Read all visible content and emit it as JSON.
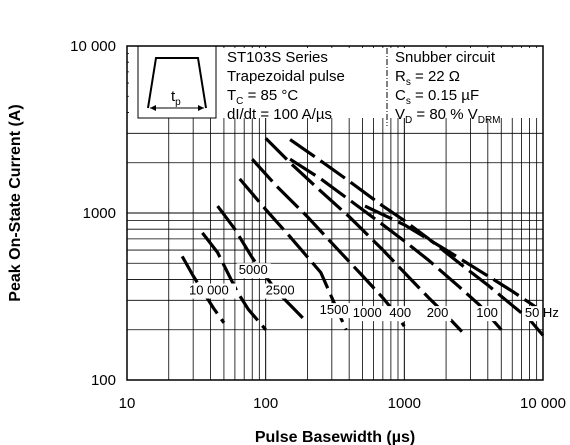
{
  "chart_data": {
    "type": "line",
    "title": "",
    "xlabel": "Pulse Basewidth (µs)",
    "ylabel": "Peak On-State Current (A)",
    "xscale": "log",
    "yscale": "log",
    "xlim": [
      10,
      10000
    ],
    "ylim": [
      100,
      10000
    ],
    "x_ticks": [
      10,
      100,
      1000,
      10000
    ],
    "x_tick_labels": [
      "10",
      "100",
      "1000",
      "10 000"
    ],
    "y_ticks": [
      100,
      1000,
      10000
    ],
    "y_tick_labels": [
      "100",
      "1000",
      "10 000"
    ],
    "grid": true,
    "series": [
      {
        "name": "10 000",
        "points": [
          [
            25,
            550
          ],
          [
            30,
            420
          ],
          [
            42,
            270
          ],
          [
            50,
            220
          ]
        ]
      },
      {
        "name": "5000",
        "points": [
          [
            35,
            760
          ],
          [
            45,
            580
          ],
          [
            62,
            340
          ],
          [
            75,
            265
          ],
          [
            100,
            200
          ]
        ]
      },
      {
        "name": "2500",
        "points": [
          [
            45,
            1100
          ],
          [
            60,
            800
          ],
          [
            80,
            540
          ],
          [
            120,
            340
          ],
          [
            165,
            260
          ],
          [
            200,
            220
          ]
        ]
      },
      {
        "name": "1500",
        "points": [
          [
            65,
            1600
          ],
          [
            100,
            1050
          ],
          [
            150,
            720
          ],
          [
            250,
            440
          ],
          [
            330,
            260
          ],
          [
            380,
            200
          ]
        ]
      },
      {
        "name": "1000",
        "points": [
          [
            80,
            2100
          ],
          [
            120,
            1450
          ],
          [
            200,
            950
          ],
          [
            300,
            660
          ],
          [
            500,
            420
          ],
          [
            700,
            310
          ],
          [
            850,
            255
          ],
          [
            1000,
            210
          ]
        ]
      },
      {
        "name": "400",
        "points": [
          [
            100,
            2800
          ],
          [
            150,
            2000
          ],
          [
            250,
            1350
          ],
          [
            400,
            950
          ],
          [
            700,
            600
          ],
          [
            1000,
            440
          ],
          [
            1500,
            310
          ],
          [
            2000,
            245
          ],
          [
            2600,
            195
          ]
        ]
      },
      {
        "name": "200",
        "points": [
          [
            150,
            2100
          ],
          [
            250,
            1600
          ],
          [
            400,
            1200
          ],
          [
            700,
            850
          ],
          [
            1000,
            680
          ],
          [
            1500,
            520
          ],
          [
            2500,
            360
          ],
          [
            3500,
            280
          ],
          [
            5000,
            200
          ]
        ]
      },
      {
        "name": "100",
        "points": [
          [
            150,
            2750
          ],
          [
            250,
            2050
          ],
          [
            400,
            1550
          ],
          [
            700,
            1100
          ],
          [
            1000,
            900
          ],
          [
            1500,
            700
          ],
          [
            2500,
            500
          ],
          [
            4000,
            370
          ],
          [
            6000,
            280
          ],
          [
            8000,
            230
          ],
          [
            10000,
            185
          ]
        ]
      },
      {
        "name": "50 Hz",
        "points": [
          [
            520,
            1100
          ],
          [
            1000,
            850
          ],
          [
            2000,
            600
          ],
          [
            4000,
            420
          ],
          [
            6000,
            340
          ],
          [
            8000,
            290
          ],
          [
            10000,
            255
          ]
        ]
      }
    ],
    "curve_labels": [
      {
        "text": "5000",
        "x": 64,
        "y": 430
      },
      {
        "text": "10 000",
        "x": 28,
        "y": 325
      },
      {
        "text": "2500",
        "x": 100,
        "y": 325
      },
      {
        "text": "1500",
        "x": 245,
        "y": 248
      },
      {
        "text": "1000",
        "x": 425,
        "y": 238
      },
      {
        "text": "400",
        "x": 780,
        "y": 238
      },
      {
        "text": "200",
        "x": 1450,
        "y": 238
      },
      {
        "text": "100",
        "x": 3300,
        "y": 238
      },
      {
        "text": "50 Hz",
        "x": 7400,
        "y": 238
      }
    ],
    "annotations": {
      "series_box": {
        "line1": "ST103S Series",
        "line2": "Trapezoidal pulse",
        "tc_main": "T",
        "tc_sub": "C",
        "tc_rest": " = 85 °C",
        "didt": "dI/dt = 100 A/µs"
      },
      "snubber_box": {
        "title": "Snubber circuit",
        "rs_main": "R",
        "rs_sub": "s",
        "rs_rest": " = 22 Ω",
        "cs_main": "C",
        "cs_sub": "s",
        "cs_rest": " = 0.15 µF",
        "vd_main": "V",
        "vd_sub": "D",
        "vd_mid": " = 80 % V",
        "vd_sub2": "DRM"
      },
      "pulse_label_main": "t",
      "pulse_label_sub": "p"
    }
  }
}
